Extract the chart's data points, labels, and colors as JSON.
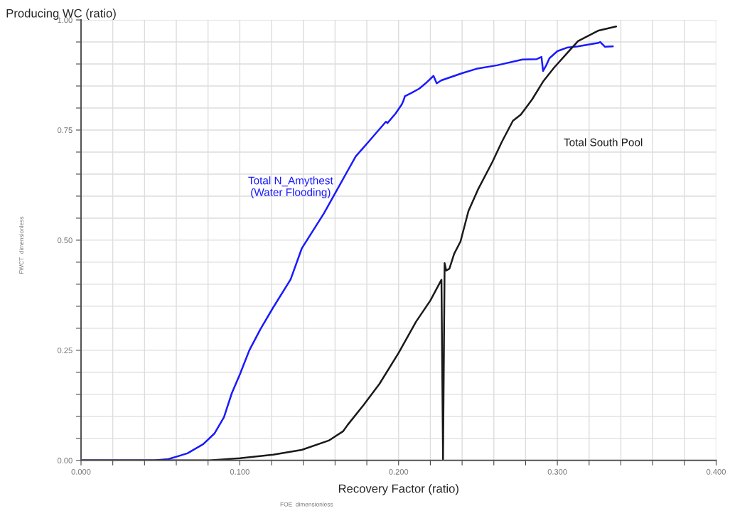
{
  "chart_data": {
    "type": "line",
    "ylabel": "Producing WC (ratio)",
    "xlabel": "Recovery Factor (ratio)",
    "annotations": [
      "FWCT  dimensionless",
      "FOE  dimensionless"
    ],
    "xlim": [
      0,
      0.4
    ],
    "ylim": [
      0,
      1.0
    ],
    "xticks": [
      {
        "value": 0,
        "label": "0.000"
      },
      {
        "value": 0.02,
        "label": null
      },
      {
        "value": 0.04,
        "label": null
      },
      {
        "value": 0.06,
        "label": null
      },
      {
        "value": 0.08,
        "label": null
      },
      {
        "value": 0.1,
        "label": "0.100"
      },
      {
        "value": 0.12,
        "label": null
      },
      {
        "value": 0.14,
        "label": null
      },
      {
        "value": 0.16,
        "label": null
      },
      {
        "value": 0.18,
        "label": null
      },
      {
        "value": 0.2,
        "label": "0.200"
      },
      {
        "value": 0.22,
        "label": null
      },
      {
        "value": 0.24,
        "label": null
      },
      {
        "value": 0.26,
        "label": null
      },
      {
        "value": 0.28,
        "label": null
      },
      {
        "value": 0.3,
        "label": "0.300"
      },
      {
        "value": 0.32,
        "label": null
      },
      {
        "value": 0.34,
        "label": null
      },
      {
        "value": 0.36,
        "label": null
      },
      {
        "value": 0.38,
        "label": null
      },
      {
        "value": 0.4,
        "label": "0.400"
      }
    ],
    "yticks": [
      {
        "value": 0,
        "label": "0.00"
      },
      {
        "value": 0.05,
        "label": null
      },
      {
        "value": 0.1,
        "label": null
      },
      {
        "value": 0.15,
        "label": null
      },
      {
        "value": 0.2,
        "label": null
      },
      {
        "value": 0.25,
        "label": "0.25"
      },
      {
        "value": 0.3,
        "label": null
      },
      {
        "value": 0.35,
        "label": null
      },
      {
        "value": 0.4,
        "label": null
      },
      {
        "value": 0.45,
        "label": null
      },
      {
        "value": 0.5,
        "label": "0.50"
      },
      {
        "value": 0.55,
        "label": null
      },
      {
        "value": 0.6,
        "label": null
      },
      {
        "value": 0.65,
        "label": null
      },
      {
        "value": 0.7,
        "label": null
      },
      {
        "value": 0.75,
        "label": "0.75"
      },
      {
        "value": 0.8,
        "label": null
      },
      {
        "value": 0.85,
        "label": null
      },
      {
        "value": 0.9,
        "label": null
      },
      {
        "value": 0.95,
        "label": null
      },
      {
        "value": 1.0,
        "label": "1.00"
      }
    ],
    "grid": true,
    "legend": false,
    "series": [
      {
        "name": "Total N_Amythest\n(Water Flooding)",
        "color": "#1a1aff",
        "x": [
          0,
          0.046,
          0.055,
          0.067,
          0.077,
          0.084,
          0.09,
          0.095,
          0.1,
          0.106,
          0.113,
          0.121,
          0.132,
          0.139,
          0.153,
          0.168,
          0.173,
          0.181,
          0.192,
          0.193,
          0.198,
          0.202,
          0.203,
          0.204,
          0.208,
          0.213,
          0.217,
          0.222,
          0.224,
          0.227,
          0.24,
          0.249,
          0.262,
          0.278,
          0.287,
          0.29,
          0.291,
          0.293,
          0.295,
          0.3,
          0.306,
          0.313,
          0.326,
          0.327,
          0.33,
          0.335
        ],
        "values": [
          0,
          0,
          0.003,
          0.016,
          0.037,
          0.061,
          0.098,
          0.153,
          0.195,
          0.25,
          0.298,
          0.347,
          0.411,
          0.481,
          0.561,
          0.658,
          0.69,
          0.723,
          0.769,
          0.766,
          0.787,
          0.808,
          0.816,
          0.827,
          0.834,
          0.844,
          0.856,
          0.873,
          0.856,
          0.863,
          0.879,
          0.889,
          0.897,
          0.91,
          0.911,
          0.916,
          0.884,
          0.897,
          0.913,
          0.929,
          0.937,
          0.94,
          0.948,
          0.95,
          0.939,
          0.94
        ]
      },
      {
        "name": "Total South Pool",
        "color": "#1a1a1a",
        "x": [
          0,
          0.081,
          0.1,
          0.121,
          0.139,
          0.156,
          0.165,
          0.168,
          0.178,
          0.188,
          0.2,
          0.211,
          0.22,
          0.227,
          0.228,
          0.229,
          0.23,
          0.232,
          0.235,
          0.239,
          0.244,
          0.25,
          0.259,
          0.265,
          0.272,
          0.277,
          0.284,
          0.291,
          0.298,
          0.306,
          0.313,
          0.326,
          0.337
        ],
        "values": [
          0,
          0,
          0.005,
          0.013,
          0.024,
          0.045,
          0.066,
          0.081,
          0.126,
          0.174,
          0.244,
          0.315,
          0.363,
          0.41,
          0.002,
          0.448,
          0.431,
          0.435,
          0.469,
          0.497,
          0.566,
          0.615,
          0.677,
          0.723,
          0.771,
          0.785,
          0.819,
          0.86,
          0.892,
          0.924,
          0.952,
          0.976,
          0.985
        ]
      }
    ]
  }
}
